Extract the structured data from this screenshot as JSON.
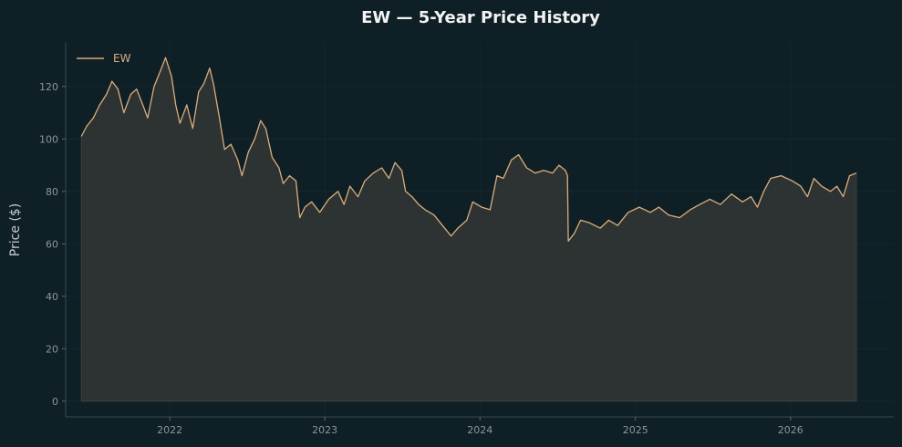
{
  "colors": {
    "background": "#0f1f26",
    "line": "#d9ad7c",
    "area": "#2d3332",
    "axis": "#3a4a52",
    "grid": "#16272e"
  },
  "chart_data": {
    "type": "area",
    "title": "EW — 5-Year Price History",
    "xlabel": "",
    "ylabel": "Price ($)",
    "xlim": [
      "2021-05-01",
      "2026-09-01"
    ],
    "ylim": [
      -6,
      137
    ],
    "yticks": [
      0,
      20,
      40,
      60,
      80,
      100,
      120
    ],
    "xticks": [
      "2022",
      "2023",
      "2024",
      "2025",
      "2026"
    ],
    "xtick_dates": [
      "2022-01-01",
      "2023-01-01",
      "2024-01-01",
      "2025-01-01",
      "2026-01-01"
    ],
    "grid": true,
    "legend": {
      "position": "top-left",
      "entries": [
        "EW"
      ]
    },
    "series": [
      {
        "name": "EW",
        "points": [
          [
            "2021-06-07",
            101
          ],
          [
            "2021-06-20",
            105
          ],
          [
            "2021-07-05",
            108
          ],
          [
            "2021-07-20",
            113
          ],
          [
            "2021-08-05",
            117
          ],
          [
            "2021-08-18",
            122
          ],
          [
            "2021-09-01",
            119
          ],
          [
            "2021-09-15",
            110
          ],
          [
            "2021-10-01",
            117
          ],
          [
            "2021-10-15",
            119
          ],
          [
            "2021-11-01",
            112
          ],
          [
            "2021-11-10",
            108
          ],
          [
            "2021-11-25",
            120
          ],
          [
            "2021-12-10",
            126
          ],
          [
            "2021-12-22",
            131
          ],
          [
            "2022-01-05",
            124
          ],
          [
            "2022-01-15",
            113
          ],
          [
            "2022-01-25",
            106
          ],
          [
            "2022-02-10",
            113
          ],
          [
            "2022-02-24",
            104
          ],
          [
            "2022-03-10",
            118
          ],
          [
            "2022-03-22",
            121
          ],
          [
            "2022-04-05",
            127
          ],
          [
            "2022-04-14",
            121
          ],
          [
            "2022-04-28",
            108
          ],
          [
            "2022-05-10",
            96
          ],
          [
            "2022-05-25",
            98
          ],
          [
            "2022-06-10",
            92
          ],
          [
            "2022-06-20",
            86
          ],
          [
            "2022-07-05",
            95
          ],
          [
            "2022-07-20",
            100
          ],
          [
            "2022-08-03",
            107
          ],
          [
            "2022-08-15",
            104
          ],
          [
            "2022-08-30",
            93
          ],
          [
            "2022-09-15",
            89
          ],
          [
            "2022-09-25",
            83
          ],
          [
            "2022-10-10",
            86
          ],
          [
            "2022-10-25",
            84
          ],
          [
            "2022-11-03",
            70
          ],
          [
            "2022-11-15",
            74
          ],
          [
            "2022-12-01",
            76
          ],
          [
            "2022-12-20",
            72
          ],
          [
            "2023-01-10",
            77
          ],
          [
            "2023-02-01",
            80
          ],
          [
            "2023-02-15",
            75
          ],
          [
            "2023-03-01",
            82
          ],
          [
            "2023-03-20",
            78
          ],
          [
            "2023-04-05",
            84
          ],
          [
            "2023-04-25",
            87
          ],
          [
            "2023-05-15",
            89
          ],
          [
            "2023-06-01",
            85
          ],
          [
            "2023-06-15",
            91
          ],
          [
            "2023-07-01",
            88
          ],
          [
            "2023-07-10",
            80
          ],
          [
            "2023-07-25",
            78
          ],
          [
            "2023-08-10",
            75
          ],
          [
            "2023-08-25",
            73
          ],
          [
            "2023-09-15",
            71
          ],
          [
            "2023-10-05",
            67
          ],
          [
            "2023-10-25",
            63
          ],
          [
            "2023-11-10",
            66
          ],
          [
            "2023-12-01",
            69
          ],
          [
            "2023-12-15",
            76
          ],
          [
            "2024-01-05",
            74
          ],
          [
            "2024-01-25",
            73
          ],
          [
            "2024-02-10",
            86
          ],
          [
            "2024-02-25",
            85
          ],
          [
            "2024-03-15",
            92
          ],
          [
            "2024-04-01",
            94
          ],
          [
            "2024-04-20",
            89
          ],
          [
            "2024-05-10",
            87
          ],
          [
            "2024-05-30",
            88
          ],
          [
            "2024-06-20",
            87
          ],
          [
            "2024-07-05",
            90
          ],
          [
            "2024-07-20",
            88
          ],
          [
            "2024-07-25",
            86
          ],
          [
            "2024-07-27",
            61
          ],
          [
            "2024-08-10",
            64
          ],
          [
            "2024-08-25",
            69
          ],
          [
            "2024-09-15",
            68
          ],
          [
            "2024-10-10",
            66
          ],
          [
            "2024-10-30",
            69
          ],
          [
            "2024-11-20",
            67
          ],
          [
            "2024-12-15",
            72
          ],
          [
            "2025-01-10",
            74
          ],
          [
            "2025-02-05",
            72
          ],
          [
            "2025-02-25",
            74
          ],
          [
            "2025-03-20",
            71
          ],
          [
            "2025-04-15",
            70
          ],
          [
            "2025-05-10",
            73
          ],
          [
            "2025-06-01",
            75
          ],
          [
            "2025-06-25",
            77
          ],
          [
            "2025-07-20",
            75
          ],
          [
            "2025-08-15",
            79
          ],
          [
            "2025-09-10",
            76
          ],
          [
            "2025-09-30",
            78
          ],
          [
            "2025-10-15",
            74
          ],
          [
            "2025-10-30",
            80
          ],
          [
            "2025-11-15",
            85
          ],
          [
            "2025-12-10",
            86
          ],
          [
            "2026-01-05",
            84
          ],
          [
            "2026-01-25",
            82
          ],
          [
            "2026-02-10",
            78
          ],
          [
            "2026-02-25",
            85
          ],
          [
            "2026-03-15",
            82
          ],
          [
            "2026-04-05",
            80
          ],
          [
            "2026-04-20",
            82
          ],
          [
            "2026-05-05",
            78
          ],
          [
            "2026-05-20",
            86
          ],
          [
            "2026-06-05",
            87
          ]
        ]
      }
    ]
  }
}
